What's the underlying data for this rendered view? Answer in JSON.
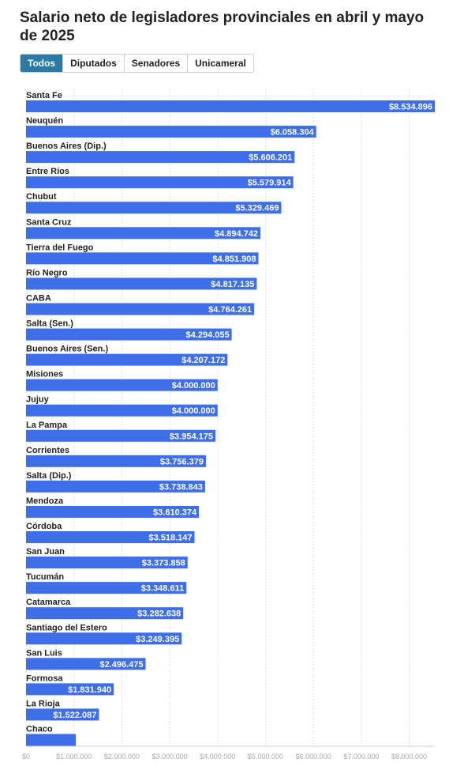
{
  "title": "Salario neto de legisladores provinciales en abril y mayo de 2025",
  "tabs": [
    {
      "label": "Todos",
      "active": true
    },
    {
      "label": "Diputados",
      "active": false
    },
    {
      "label": "Senadores",
      "active": false
    },
    {
      "label": "Unicameral",
      "active": false
    }
  ],
  "colors": {
    "bar": "#3e6ee8",
    "active_tab": "#2b7aa5"
  },
  "chart_data": {
    "type": "bar",
    "orientation": "horizontal",
    "title": "Salario neto de legisladores provinciales en abril y mayo de 2025",
    "categories": [
      "Santa Fe",
      "Neuquén",
      "Buenos Aires (Dip.)",
      "Entre Ríos",
      "Chubut",
      "Santa Cruz",
      "Tierra del Fuego",
      "Río Negro",
      "CABA",
      "Salta (Sen.)",
      "Buenos Aires (Sen.)",
      "Misiones",
      "Jujuy",
      "La Pampa",
      "Corrientes",
      "Salta (Dip.)",
      "Mendoza",
      "Córdoba",
      "San Juan",
      "Tucumán",
      "Catamarca",
      "Santiago del Estero",
      "San Luis",
      "Formosa",
      "La Rioja",
      "Chaco"
    ],
    "values": [
      8534896,
      6058304,
      5606201,
      5579914,
      5329469,
      4894742,
      4851908,
      4817135,
      4764261,
      4294055,
      4207172,
      4000000,
      4000000,
      3954175,
      3756379,
      3738843,
      3610374,
      3518147,
      3373858,
      3348611,
      3282638,
      3249395,
      2496475,
      1831940,
      1522087,
      1040000
    ],
    "value_labels": [
      "$8.534.896",
      "$6.058.304",
      "$5.606.201",
      "$5.579.914",
      "$5.329.469",
      "$4.894.742",
      "$4.851.908",
      "$4.817.135",
      "$4.764.261",
      "$4.294.055",
      "$4.207.172",
      "$4.000.000",
      "$4.000.000",
      "$3.954.175",
      "$3.756.379",
      "$3.738.843",
      "$3.610.374",
      "$3.518.147",
      "$3.373.858",
      "$3.348.611",
      "$3.282.638",
      "$3.249.395",
      "$2.496.475",
      "$1.831.940",
      "$1.522.087",
      ""
    ],
    "xlim": [
      0,
      8534896
    ],
    "x_ticks": [
      0,
      1000000,
      2000000,
      3000000,
      4000000,
      5000000,
      6000000,
      7000000,
      8000000
    ],
    "x_tick_labels": [
      "$0",
      "$1.000.000",
      "$2.000.000",
      "$3.000.000",
      "$4.000.000",
      "$5.000.000",
      "$6.000.000",
      "$7.000.000",
      "$8.000.000"
    ],
    "grid": true,
    "legend": "none"
  }
}
